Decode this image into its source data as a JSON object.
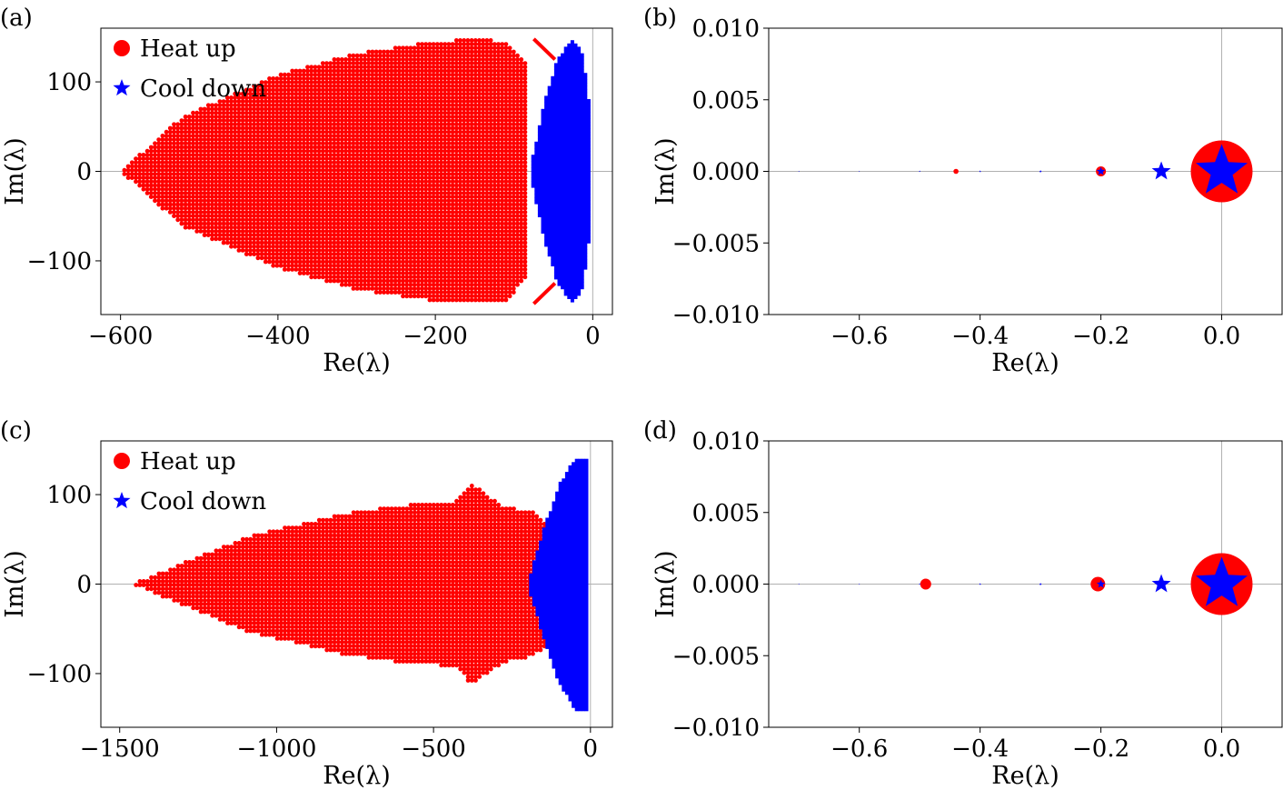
{
  "figure": {
    "panels": [
      "(a)",
      "(b)",
      "(c)",
      "(d)"
    ]
  },
  "chart_data": [
    {
      "panel": "(a)",
      "type": "scatter",
      "xlabel": "Re(λ)",
      "ylabel": "Im(λ)",
      "xlim": [
        -625,
        25
      ],
      "ylim": [
        -160,
        160
      ],
      "xticks": [
        -600,
        -400,
        -200,
        0
      ],
      "xtick_labels": [
        "−600",
        "−400",
        "−200",
        "0"
      ],
      "yticks": [
        -100,
        0,
        100
      ],
      "ytick_labels": [
        "−100",
        "0",
        "100"
      ],
      "legend": {
        "placement": "top-left",
        "entries": [
          "Heat up",
          "Cool down"
        ]
      },
      "series": [
        {
          "name": "Heat up",
          "marker": "circle",
          "color": "#ff0000",
          "envelope": [
            [
              -600,
              0
            ],
            [
              -520,
              62
            ],
            [
              -400,
              108
            ],
            [
              -300,
              132
            ],
            [
              -200,
              145
            ],
            [
              -150,
              148
            ],
            [
              -110,
              145
            ],
            [
              -85,
              120
            ],
            [
              -85,
              -120
            ],
            [
              -110,
              -145
            ],
            [
              -150,
              -148
            ],
            [
              -200,
              -145
            ],
            [
              -300,
              -132
            ],
            [
              -400,
              -108
            ],
            [
              -520,
              -62
            ],
            [
              -600,
              0
            ]
          ],
          "spurs": [
            [
              [
                -75,
                148
              ],
              [
                -48,
                125
              ]
            ],
            [
              [
                -75,
                -148
              ],
              [
                -48,
                -125
              ]
            ]
          ]
        },
        {
          "name": "Cool down",
          "marker": "star",
          "color": "#0000ff",
          "envelope": [
            [
              -80,
              0
            ],
            [
              -62,
              75
            ],
            [
              -45,
              125
            ],
            [
              -25,
              148
            ],
            [
              -12,
              130
            ],
            [
              -4,
              70
            ],
            [
              -2,
              0
            ],
            [
              -4,
              -70
            ],
            [
              -12,
              -130
            ],
            [
              -25,
              -148
            ],
            [
              -45,
              -125
            ],
            [
              -62,
              -75
            ],
            [
              -80,
              0
            ]
          ]
        }
      ]
    },
    {
      "panel": "(b)",
      "type": "scatter",
      "xlabel": "Re(λ)",
      "ylabel": "Im(λ)",
      "xlim": [
        -0.75,
        0.1
      ],
      "ylim": [
        -0.01,
        0.01
      ],
      "xticks": [
        -0.6,
        -0.4,
        -0.2,
        0.0
      ],
      "xtick_labels": [
        "−0.6",
        "−0.4",
        "−0.2",
        "0.0"
      ],
      "yticks": [
        -0.01,
        -0.005,
        0.0,
        0.005,
        0.01
      ],
      "ytick_labels": [
        "−0.010",
        "−0.005",
        "0.000",
        "0.005",
        "0.010"
      ],
      "series": [
        {
          "name": "Heat up",
          "marker": "circle",
          "color": "#ff0000",
          "points": [
            [
              -0.44,
              0,
              2.8
            ],
            [
              -0.2,
              0,
              5.5
            ],
            [
              0.0,
              0,
              34
            ]
          ]
        },
        {
          "name": "Cool down",
          "marker": "star",
          "color": "#0000ff",
          "points": [
            [
              -0.7,
              0,
              0.7
            ],
            [
              -0.6,
              0,
              0.7
            ],
            [
              -0.5,
              0,
              1.0
            ],
            [
              -0.4,
              0,
              1.2
            ],
            [
              -0.3,
              0,
              1.5
            ],
            [
              -0.2,
              0,
              5
            ],
            [
              -0.1,
              0,
              11
            ],
            [
              0.0,
              0,
              30
            ]
          ]
        }
      ]
    },
    {
      "panel": "(c)",
      "type": "scatter",
      "xlabel": "Re(λ)",
      "ylabel": "Im(λ)",
      "xlim": [
        -1560,
        70
      ],
      "ylim": [
        -160,
        160
      ],
      "xticks": [
        -1500,
        -1000,
        -500,
        0
      ],
      "xtick_labels": [
        "−1500",
        "−1000",
        "−500",
        "0"
      ],
      "yticks": [
        -100,
        0,
        100
      ],
      "ytick_labels": [
        "−100",
        "0",
        "100"
      ],
      "legend": {
        "placement": "top-left",
        "entries": [
          "Heat up",
          "Cool down"
        ]
      },
      "series": [
        {
          "name": "Heat up",
          "marker": "circle",
          "color": "#ff0000",
          "envelope": [
            [
              -1460,
              0
            ],
            [
              -1100,
              52
            ],
            [
              -800,
              78
            ],
            [
              -600,
              88
            ],
            [
              -430,
              92
            ],
            [
              -380,
              112
            ],
            [
              -330,
              100
            ],
            [
              -280,
              88
            ],
            [
              -180,
              80
            ],
            [
              -110,
              60
            ],
            [
              -80,
              0
            ],
            [
              -110,
              -60
            ],
            [
              -180,
              -80
            ],
            [
              -280,
              -88
            ],
            [
              -330,
              -100
            ],
            [
              -380,
              -112
            ],
            [
              -430,
              -92
            ],
            [
              -600,
              -88
            ],
            [
              -800,
              -78
            ],
            [
              -1100,
              -52
            ],
            [
              -1460,
              0
            ]
          ]
        },
        {
          "name": "Cool down",
          "marker": "star",
          "color": "#0000ff",
          "envelope": [
            [
              -200,
              0
            ],
            [
              -150,
              60
            ],
            [
              -100,
              110
            ],
            [
              -50,
              140
            ],
            [
              -20,
              140
            ],
            [
              -5,
              140
            ],
            [
              -3,
              0
            ],
            [
              -5,
              -140
            ],
            [
              -20,
              -140
            ],
            [
              -50,
              -140
            ],
            [
              -100,
              -110
            ],
            [
              -150,
              -60
            ],
            [
              -200,
              0
            ]
          ]
        }
      ]
    },
    {
      "panel": "(d)",
      "type": "scatter",
      "xlabel": "Re(λ)",
      "ylabel": "Im(λ)",
      "xlim": [
        -0.75,
        0.1
      ],
      "ylim": [
        -0.01,
        0.01
      ],
      "xticks": [
        -0.6,
        -0.4,
        -0.2,
        0.0
      ],
      "xtick_labels": [
        "−0.6",
        "−0.4",
        "−0.2",
        "0.0"
      ],
      "yticks": [
        -0.01,
        -0.005,
        0.0,
        0.005,
        0.01
      ],
      "ytick_labels": [
        "−0.010",
        "−0.005",
        "0.000",
        "0.005",
        "0.010"
      ],
      "series": [
        {
          "name": "Heat up",
          "marker": "circle",
          "color": "#ff0000",
          "points": [
            [
              -0.49,
              0,
              6
            ],
            [
              -0.205,
              0,
              8
            ],
            [
              0.0,
              0,
              34
            ]
          ]
        },
        {
          "name": "Cool down",
          "marker": "star",
          "color": "#0000ff",
          "points": [
            [
              -0.7,
              0,
              0.7
            ],
            [
              -0.6,
              0,
              0.7
            ],
            [
              -0.5,
              0,
              1.0
            ],
            [
              -0.4,
              0,
              1.2
            ],
            [
              -0.3,
              0,
              1.5
            ],
            [
              -0.2,
              0,
              5
            ],
            [
              -0.1,
              0,
              11
            ],
            [
              0.0,
              0,
              30
            ]
          ]
        }
      ]
    }
  ]
}
